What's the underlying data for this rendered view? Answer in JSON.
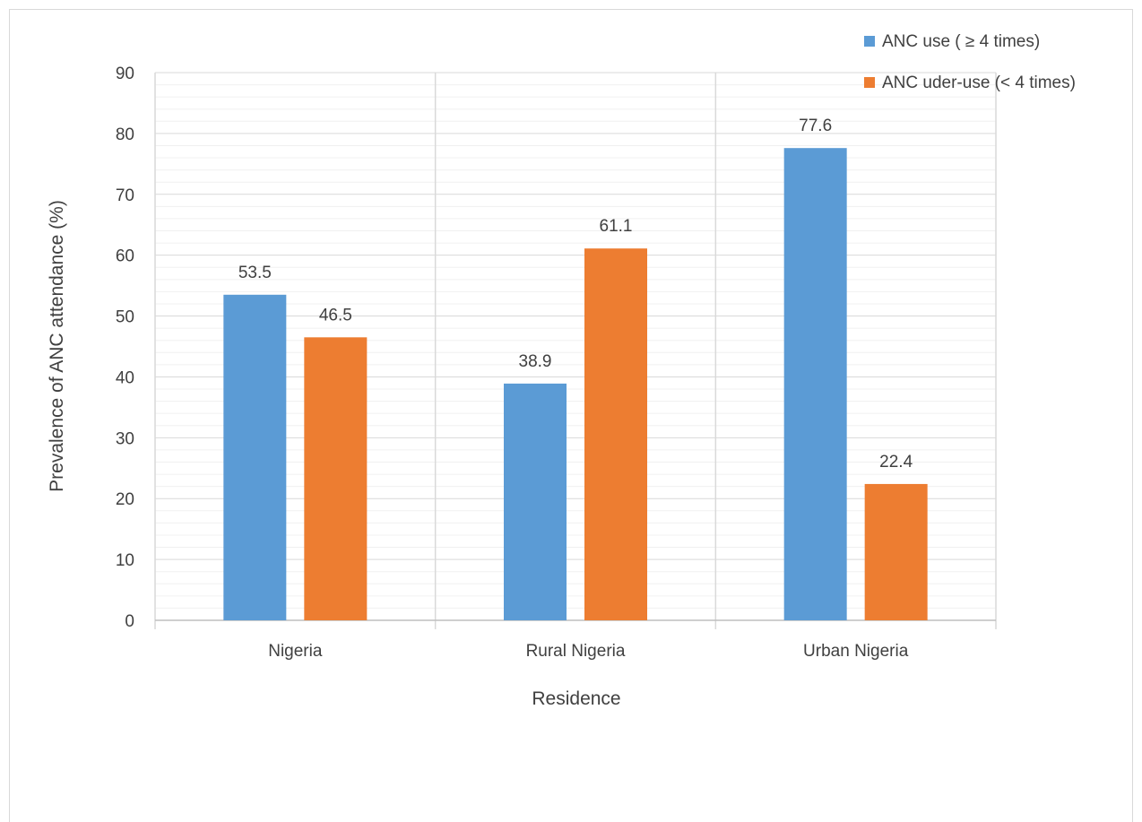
{
  "chart_data": {
    "type": "bar",
    "title": "",
    "xlabel": "Residence",
    "ylabel": "Prevalence of ANC attendance (%)",
    "categories": [
      "Nigeria",
      "Rural Nigeria",
      "Urban Nigeria"
    ],
    "series": [
      {
        "name": "ANC use ( ≥ 4 times)",
        "color": "#5b9bd5",
        "values": [
          53.5,
          38.9,
          77.6
        ],
        "labels": [
          "53.5",
          "38.9",
          "77.6"
        ]
      },
      {
        "name": "ANC uder-use (< 4 times)",
        "color": "#ed7d31",
        "values": [
          46.5,
          61.1,
          22.4
        ],
        "labels": [
          "46.5",
          "61.1",
          "22.4"
        ]
      }
    ],
    "ylim": [
      0,
      90
    ],
    "yticks": [
      "0",
      "10",
      "20",
      "30",
      "40",
      "50",
      "60",
      "70",
      "80",
      "90"
    ],
    "grid": "major and minor horizontal gridlines, vertical category gridlines",
    "legend_position": "top-right",
    "gridline_color": "#d9d9d9",
    "minor_gridline_color": "#f0f0f0",
    "text_color": "#404040"
  }
}
